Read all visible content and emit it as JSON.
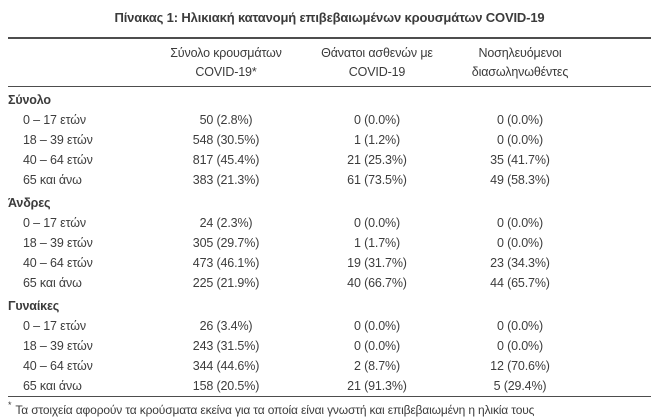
{
  "title": "Πίνακας 1: Ηλικιακή κατανομή επιβεβαιωμένων κρουσμάτων COVID-19",
  "table": {
    "columns": [
      {
        "line1": "Σύνολο κρουσμάτων",
        "line2": "COVID-19*"
      },
      {
        "line1": "Θάνατοι ασθενών με",
        "line2": "COVID-19"
      },
      {
        "line1": "Νοσηλευόμενοι",
        "line2": "διασωληνωθέντες"
      }
    ],
    "sections": [
      {
        "label": "Σύνολο",
        "rows": [
          {
            "label": "0 – 17 ετών",
            "cases": "50 (2.8%)",
            "deaths": "0 (0.0%)",
            "intubated": "0 (0.0%)"
          },
          {
            "label": "18 – 39 ετών",
            "cases": "548 (30.5%)",
            "deaths": "1 (1.2%)",
            "intubated": "0 (0.0%)"
          },
          {
            "label": "40 – 64 ετών",
            "cases": "817 (45.4%)",
            "deaths": "21 (25.3%)",
            "intubated": "35 (41.7%)"
          },
          {
            "label": "65 και άνω",
            "cases": "383 (21.3%)",
            "deaths": "61 (73.5%)",
            "intubated": "49 (58.3%)"
          }
        ]
      },
      {
        "label": "Άνδρες",
        "rows": [
          {
            "label": "0 – 17 ετών",
            "cases": "24 (2.3%)",
            "deaths": "0 (0.0%)",
            "intubated": "0 (0.0%)"
          },
          {
            "label": "18 – 39 ετών",
            "cases": "305 (29.7%)",
            "deaths": "1 (1.7%)",
            "intubated": "0 (0.0%)"
          },
          {
            "label": "40 – 64 ετών",
            "cases": "473 (46.1%)",
            "deaths": "19 (31.7%)",
            "intubated": "23 (34.3%)"
          },
          {
            "label": "65 και άνω",
            "cases": "225 (21.9%)",
            "deaths": "40 (66.7%)",
            "intubated": "44 (65.7%)"
          }
        ]
      },
      {
        "label": "Γυναίκες",
        "rows": [
          {
            "label": "0 – 17 ετών",
            "cases": "26 (3.4%)",
            "deaths": "0 (0.0%)",
            "intubated": "0 (0.0%)"
          },
          {
            "label": "18 – 39 ετών",
            "cases": "243 (31.5%)",
            "deaths": "0 (0.0%)",
            "intubated": "0 (0.0%)"
          },
          {
            "label": "40 – 64 ετών",
            "cases": "344 (44.6%)",
            "deaths": "2 (8.7%)",
            "intubated": "12 (70.6%)"
          },
          {
            "label": "65 και άνω",
            "cases": "158 (20.5%)",
            "deaths": "21 (91.3%)",
            "intubated": "5 (29.4%)"
          }
        ]
      }
    ]
  },
  "footnote": {
    "marker": "*",
    "text": "Τα στοιχεία αφορούν τα κρούσματα εκείνα για τα οποία είναι γνωστή και επιβεβαιωμένη η ηλικία τους"
  }
}
